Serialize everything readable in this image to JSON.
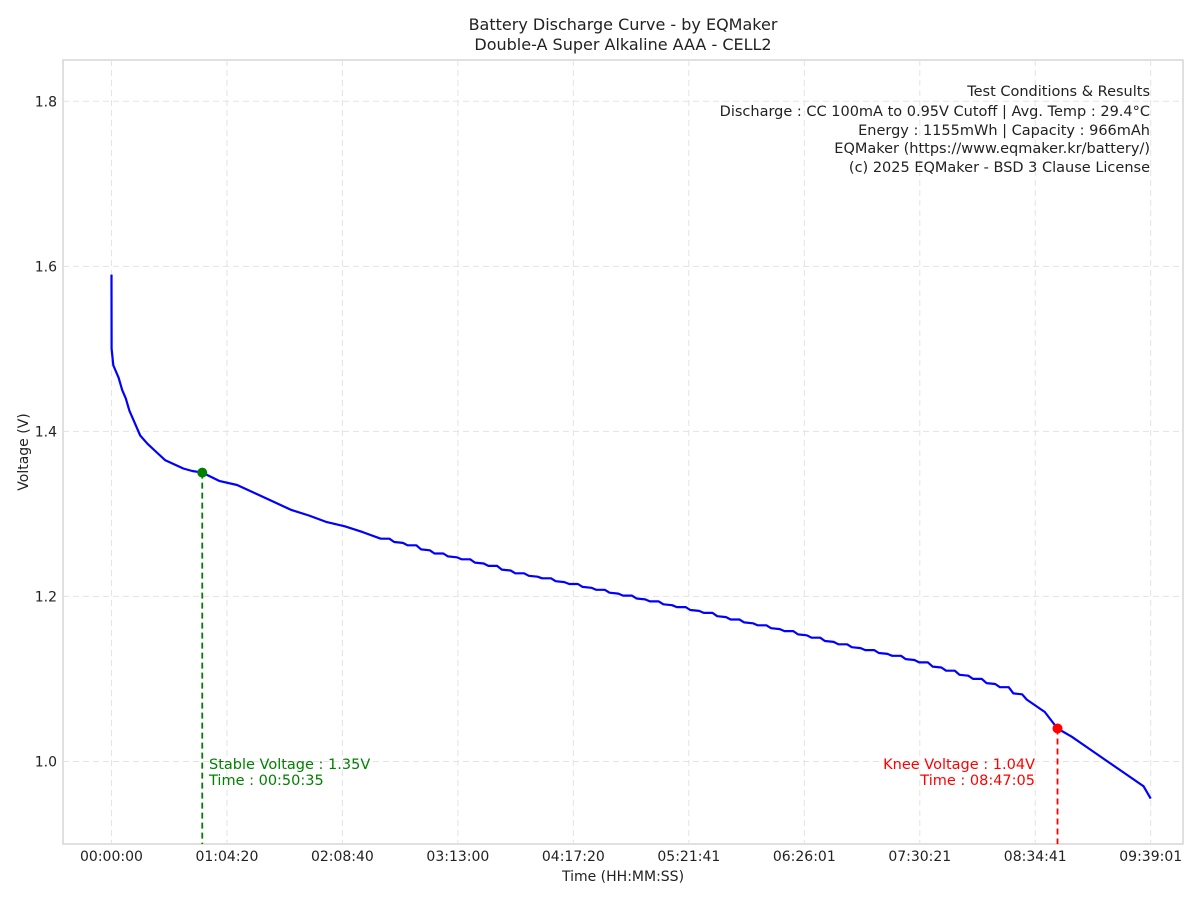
{
  "chart_data": {
    "type": "line",
    "title": "Battery Discharge Curve - by EQMaker",
    "subtitle": "Double-A Super Alkaline AAA - CELL2",
    "xlabel": "Time (HH:MM:SS)",
    "ylabel": "Voltage (V)",
    "xlim": [
      "-00:27:00",
      "09:57:00"
    ],
    "ylim": [
      0.9,
      1.85
    ],
    "x_ticks": [
      "00:00:00",
      "01:04:20",
      "02:08:40",
      "03:13:00",
      "04:17:20",
      "05:21:41",
      "06:26:01",
      "07:30:21",
      "08:34:41",
      "09:39:01"
    ],
    "y_ticks": [
      "1.0",
      "1.2",
      "1.4",
      "1.6",
      "1.8"
    ],
    "grid": true,
    "series": [
      {
        "color": "#0000ff",
        "x": [
          "00:00:00",
          "00:00:01",
          "00:00:05",
          "00:01:00",
          "00:02:00",
          "00:04:00",
          "00:06:00",
          "00:08:00",
          "00:10:00",
          "00:13:00",
          "00:16:00",
          "00:20:00",
          "00:25:00",
          "00:30:00",
          "00:35:00",
          "00:40:00",
          "00:45:00",
          "00:50:35",
          "01:00:00",
          "01:10:00",
          "01:20:00",
          "01:30:00",
          "01:40:00",
          "01:50:00",
          "02:00:00",
          "02:10:00",
          "02:20:00",
          "02:30:00",
          "02:45:00",
          "03:00:00",
          "03:15:00",
          "03:30:00",
          "03:45:00",
          "04:00:00",
          "04:15:00",
          "04:30:00",
          "04:45:00",
          "05:00:00",
          "05:15:00",
          "05:30:00",
          "05:45:00",
          "06:00:00",
          "06:15:00",
          "06:30:00",
          "06:45:00",
          "07:00:00",
          "07:15:00",
          "07:30:00",
          "07:45:00",
          "08:00:00",
          "08:15:00",
          "08:30:00",
          "08:40:00",
          "08:47:05",
          "08:55:00",
          "09:05:00",
          "09:15:00",
          "09:25:00",
          "09:35:00",
          "09:39:01"
        ],
        "y": [
          1.59,
          1.58,
          1.5,
          1.48,
          1.475,
          1.465,
          1.45,
          1.44,
          1.425,
          1.41,
          1.395,
          1.385,
          1.375,
          1.365,
          1.36,
          1.355,
          1.352,
          1.35,
          1.34,
          1.335,
          1.325,
          1.315,
          1.305,
          1.298,
          1.29,
          1.285,
          1.278,
          1.27,
          1.262,
          1.252,
          1.245,
          1.237,
          1.228,
          1.222,
          1.215,
          1.208,
          1.201,
          1.194,
          1.187,
          1.18,
          1.172,
          1.165,
          1.158,
          1.15,
          1.142,
          1.135,
          1.128,
          1.12,
          1.11,
          1.1,
          1.09,
          1.075,
          1.06,
          1.04,
          1.03,
          1.015,
          1.0,
          0.985,
          0.97,
          0.955
        ]
      }
    ],
    "markers": [
      {
        "name": "Stable Voltage",
        "x": "00:50:35",
        "y": 1.35,
        "color": "#008000"
      },
      {
        "name": "Knee Voltage",
        "x": "08:47:05",
        "y": 1.04,
        "color": "#ff0000"
      }
    ],
    "annotations": {
      "stable": [
        "Stable Voltage : 1.35V",
        "Time : 00:50:35"
      ],
      "knee": [
        "Knee Voltage : 1.04V",
        "Time : 08:47:05"
      ]
    },
    "info_box": [
      "Test Conditions & Results",
      "Discharge : CC 100mA to 0.95V Cutoff | Avg. Temp : 29.4°C",
      "Energy : 1155mWh | Capacity : 966mAh",
      "EQMaker (https://www.eqmaker.kr/battery/)",
      "(c) 2025 EQMaker - BSD 3 Clause License"
    ]
  }
}
